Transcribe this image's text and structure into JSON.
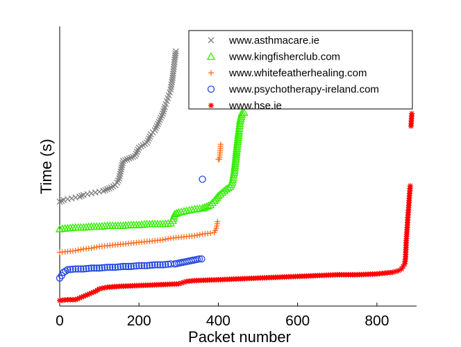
{
  "chart_data": {
    "type": "scatter",
    "xlabel": "Packet number",
    "ylabel": "Time (s)",
    "xlim": [
      0,
      900
    ],
    "x_ticks": [
      0,
      200,
      400,
      600,
      800
    ],
    "y_ticks_shown": false,
    "grid": false,
    "legend_placement": "top-right",
    "series": [
      {
        "name": "www.asthmacare.ie",
        "marker": "x",
        "color": "#7f7f7f",
        "points": [
          [
            0,
            119
          ],
          [
            10,
            121
          ],
          [
            20,
            122
          ],
          [
            30,
            123
          ],
          [
            40,
            124
          ],
          [
            50,
            125
          ],
          [
            60,
            127
          ],
          [
            70,
            128
          ],
          [
            80,
            129
          ],
          [
            90,
            130
          ],
          [
            100,
            131
          ],
          [
            110,
            132
          ],
          [
            120,
            134
          ],
          [
            130,
            136
          ],
          [
            140,
            139
          ],
          [
            145,
            142
          ],
          [
            150,
            147
          ],
          [
            155,
            158
          ],
          [
            160,
            168
          ],
          [
            170,
            170
          ],
          [
            180,
            172
          ],
          [
            190,
            174
          ],
          [
            200,
            184
          ],
          [
            210,
            187
          ],
          [
            220,
            190
          ],
          [
            230,
            200
          ],
          [
            240,
            205
          ],
          [
            250,
            215
          ],
          [
            260,
            225
          ],
          [
            265,
            233
          ],
          [
            270,
            240
          ],
          [
            275,
            247
          ],
          [
            280,
            254
          ],
          [
            283,
            263
          ],
          [
            286,
            273
          ],
          [
            290,
            290
          ],
          [
            293,
            300
          ]
        ]
      },
      {
        "name": "www.kingfisherclub.com",
        "marker": "triangle",
        "color": "#33ee00",
        "points": [
          [
            0,
            86
          ],
          [
            20,
            87
          ],
          [
            40,
            88
          ],
          [
            60,
            88
          ],
          [
            80,
            89
          ],
          [
            100,
            89
          ],
          [
            120,
            90
          ],
          [
            140,
            90
          ],
          [
            160,
            90
          ],
          [
            180,
            91
          ],
          [
            200,
            91
          ],
          [
            220,
            92
          ],
          [
            240,
            92
          ],
          [
            260,
            92
          ],
          [
            280,
            93
          ],
          [
            285,
            96
          ],
          [
            290,
            104
          ],
          [
            300,
            106
          ],
          [
            320,
            108
          ],
          [
            340,
            110
          ],
          [
            360,
            111
          ],
          [
            370,
            113
          ],
          [
            380,
            115
          ],
          [
            390,
            120
          ],
          [
            400,
            126
          ],
          [
            410,
            130
          ],
          [
            420,
            134
          ],
          [
            430,
            137
          ],
          [
            435,
            142
          ],
          [
            440,
            154
          ],
          [
            442,
            162
          ],
          [
            444,
            170
          ],
          [
            446,
            180
          ],
          [
            448,
            188
          ],
          [
            450,
            196
          ],
          [
            452,
            204
          ],
          [
            455,
            216
          ],
          [
            460,
            226
          ],
          [
            465,
            226
          ]
        ]
      },
      {
        "name": "www.whitefeatherhealing.com",
        "marker": "plus",
        "color": "#ff6a1a",
        "points": [
          [
            0,
            58
          ],
          [
            20,
            59
          ],
          [
            40,
            60
          ],
          [
            60,
            62
          ],
          [
            80,
            63
          ],
          [
            100,
            65
          ],
          [
            120,
            66
          ],
          [
            140,
            67
          ],
          [
            160,
            68
          ],
          [
            180,
            69
          ],
          [
            200,
            70
          ],
          [
            220,
            71
          ],
          [
            240,
            72
          ],
          [
            260,
            73
          ],
          [
            280,
            75
          ],
          [
            300,
            76
          ],
          [
            320,
            77
          ],
          [
            340,
            78
          ],
          [
            360,
            80
          ],
          [
            380,
            81
          ],
          [
            390,
            82
          ],
          [
            395,
            87
          ],
          [
            398,
            95
          ],
          [
            400,
            170
          ],
          [
            403,
            170
          ],
          [
            406,
            188
          ]
        ]
      },
      {
        "name": "www.psychotherapy-ireland.com",
        "marker": "circle",
        "color": "#2244dd",
        "points": [
          [
            0,
            27
          ],
          [
            5,
            30
          ],
          [
            10,
            34
          ],
          [
            20,
            37
          ],
          [
            40,
            38
          ],
          [
            60,
            38
          ],
          [
            80,
            39
          ],
          [
            100,
            39
          ],
          [
            120,
            40
          ],
          [
            140,
            40
          ],
          [
            160,
            41
          ],
          [
            180,
            41
          ],
          [
            200,
            42
          ],
          [
            220,
            42
          ],
          [
            240,
            43
          ],
          [
            260,
            43
          ],
          [
            280,
            44
          ],
          [
            290,
            44
          ],
          [
            352,
            50
          ],
          [
            358,
            50
          ],
          [
            360,
            146
          ]
        ]
      },
      {
        "name": "www.hse.ie",
        "marker": "asterisk",
        "color": "#ff0000",
        "points": [
          [
            0,
            0
          ],
          [
            20,
            1
          ],
          [
            40,
            1
          ],
          [
            50,
            3
          ],
          [
            60,
            5
          ],
          [
            70,
            7
          ],
          [
            80,
            9
          ],
          [
            90,
            11
          ],
          [
            100,
            14
          ],
          [
            120,
            16
          ],
          [
            150,
            17
          ],
          [
            200,
            18
          ],
          [
            250,
            19
          ],
          [
            300,
            20
          ],
          [
            320,
            23
          ],
          [
            340,
            24
          ],
          [
            400,
            25
          ],
          [
            450,
            26
          ],
          [
            500,
            27
          ],
          [
            550,
            28
          ],
          [
            600,
            29
          ],
          [
            650,
            30
          ],
          [
            700,
            31
          ],
          [
            750,
            31
          ],
          [
            800,
            32
          ],
          [
            820,
            33
          ],
          [
            840,
            34
          ],
          [
            855,
            36
          ],
          [
            862,
            38
          ],
          [
            866,
            41
          ],
          [
            870,
            44
          ],
          [
            872,
            50
          ],
          [
            874,
            72
          ],
          [
            876,
            85
          ],
          [
            878,
            100
          ],
          [
            880,
            112
          ],
          [
            882,
            126
          ],
          [
            884,
            138
          ],
          [
            886,
            210
          ],
          [
            888,
            225
          ]
        ]
      }
    ]
  }
}
